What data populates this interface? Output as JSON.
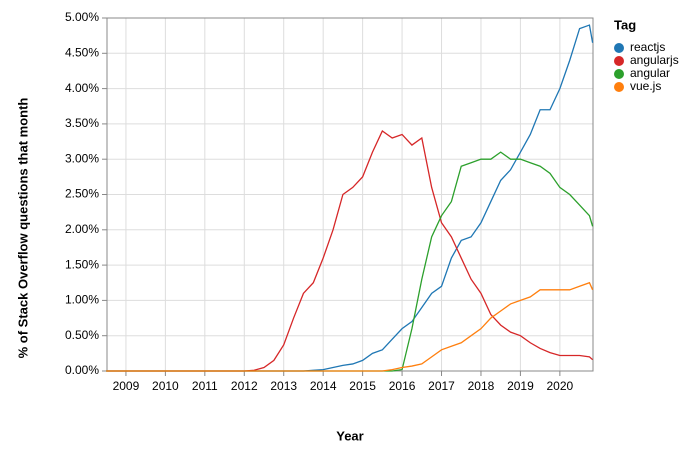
{
  "chart_data": {
    "type": "line",
    "xlabel": "Year",
    "ylabel": "% of Stack Overflow questions that month",
    "legend_title": "Tag",
    "legend": "right",
    "grid": true,
    "x": [
      2008.5,
      2008.75,
      2009,
      2009.25,
      2009.5,
      2009.75,
      2010,
      2010.25,
      2010.5,
      2010.75,
      2011,
      2011.25,
      2011.5,
      2011.75,
      2012,
      2012.25,
      2012.5,
      2012.75,
      2013,
      2013.25,
      2013.5,
      2013.75,
      2014,
      2014.25,
      2014.5,
      2014.75,
      2015,
      2015.25,
      2015.5,
      2015.75,
      2016,
      2016.25,
      2016.5,
      2016.75,
      2017,
      2017.25,
      2017.5,
      2017.75,
      2018,
      2018.25,
      2018.5,
      2018.75,
      2019,
      2019.25,
      2019.5,
      2019.75,
      2020,
      2020.25,
      2020.5,
      2020.75,
      2020.83
    ],
    "xlim": [
      2008.52,
      2020.84
    ],
    "xticks": [
      2009,
      2010,
      2011,
      2012,
      2013,
      2014,
      2015,
      2016,
      2017,
      2018,
      2019,
      2020
    ],
    "ylim": [
      0,
      5
    ],
    "yticks": [
      {
        "value": 0,
        "label": "0.00%"
      },
      {
        "value": 0.5,
        "label": "0.50%"
      },
      {
        "value": 1,
        "label": "1.00%"
      },
      {
        "value": 1.5,
        "label": "1.50%"
      },
      {
        "value": 2,
        "label": "2.00%"
      },
      {
        "value": 2.5,
        "label": "2.50%"
      },
      {
        "value": 3,
        "label": "3.00%"
      },
      {
        "value": 3.5,
        "label": "3.50%"
      },
      {
        "value": 4,
        "label": "4.00%"
      },
      {
        "value": 4.5,
        "label": "4.50%"
      },
      {
        "value": 5,
        "label": "5.00%"
      }
    ],
    "series": [
      {
        "name": "reactjs",
        "color": "#1f77b4",
        "values": [
          0,
          0,
          0,
          0,
          0,
          0,
          0,
          0,
          0,
          0,
          0,
          0,
          0,
          0,
          0,
          0,
          0,
          0,
          0,
          0,
          0,
          0.01,
          0.02,
          0.05,
          0.08,
          0.1,
          0.15,
          0.25,
          0.3,
          0.45,
          0.6,
          0.7,
          0.9,
          1.1,
          1.2,
          1.6,
          1.85,
          1.9,
          2.1,
          2.4,
          2.7,
          2.85,
          3.1,
          3.35,
          3.7,
          3.7,
          4.0,
          4.4,
          4.85,
          4.9,
          4.65
        ]
      },
      {
        "name": "angularjs",
        "color": "#d62728",
        "values": [
          0,
          0,
          0,
          0,
          0,
          0,
          0,
          0,
          0,
          0,
          0,
          0,
          0,
          0,
          0,
          0.01,
          0.05,
          0.15,
          0.37,
          0.75,
          1.1,
          1.25,
          1.6,
          2.0,
          2.5,
          2.6,
          2.75,
          3.1,
          3.4,
          3.3,
          3.35,
          3.2,
          3.3,
          2.6,
          2.1,
          1.9,
          1.6,
          1.3,
          1.1,
          0.8,
          0.65,
          0.55,
          0.5,
          0.4,
          0.32,
          0.26,
          0.22,
          0.22,
          0.22,
          0.2,
          0.16
        ]
      },
      {
        "name": "angular",
        "color": "#2ca02c",
        "values": [
          0,
          0,
          0,
          0,
          0,
          0,
          0,
          0,
          0,
          0,
          0,
          0,
          0,
          0,
          0,
          0,
          0,
          0,
          0,
          0,
          0,
          0,
          0,
          0,
          0,
          0,
          0,
          0,
          0,
          0,
          0.02,
          0.6,
          1.3,
          1.9,
          2.2,
          2.4,
          2.9,
          2.95,
          3.0,
          3.0,
          3.1,
          3.0,
          3.0,
          2.95,
          2.9,
          2.8,
          2.6,
          2.5,
          2.35,
          2.2,
          2.05
        ]
      },
      {
        "name": "vue.js",
        "color": "#ff7f0e",
        "values": [
          0,
          0,
          0,
          0,
          0,
          0,
          0,
          0,
          0,
          0,
          0,
          0,
          0,
          0,
          0,
          0,
          0,
          0,
          0,
          0,
          0,
          0,
          0,
          0,
          0,
          0,
          0,
          0,
          0,
          0.02,
          0.05,
          0.07,
          0.1,
          0.2,
          0.3,
          0.35,
          0.4,
          0.5,
          0.6,
          0.75,
          0.85,
          0.95,
          1.0,
          1.05,
          1.15,
          1.15,
          1.15,
          1.15,
          1.2,
          1.25,
          1.15
        ]
      }
    ]
  }
}
